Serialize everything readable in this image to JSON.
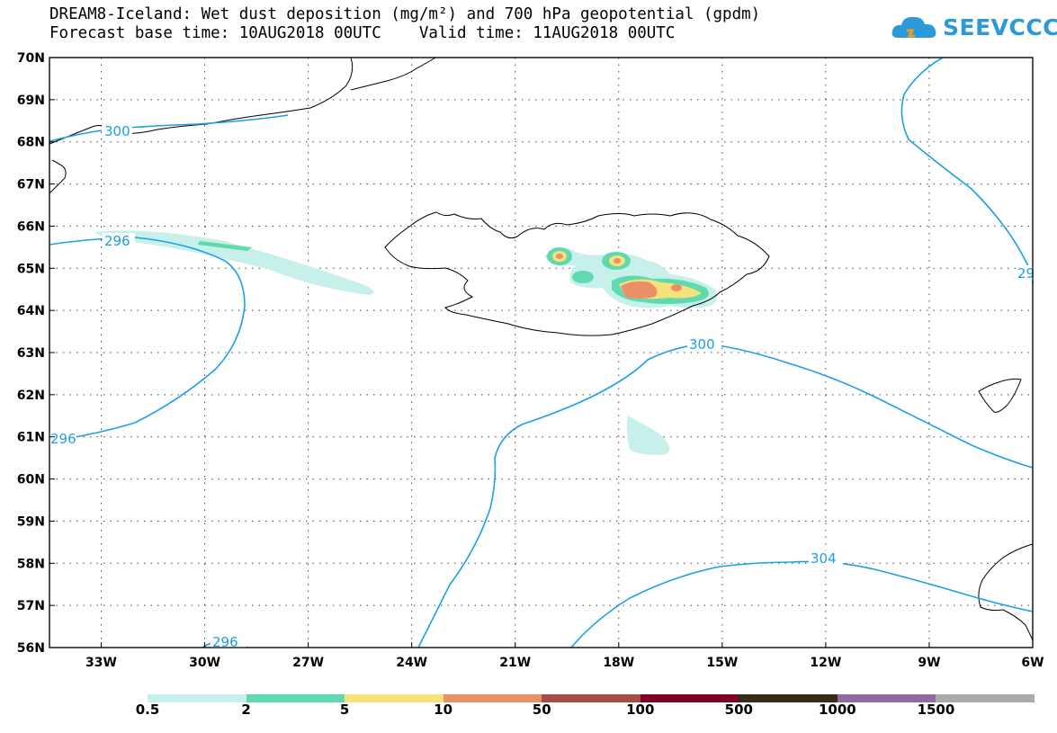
{
  "header": {
    "title_line1": "DREAM8-Iceland: Wet dust deposition (mg/m²) and 700 hPa geopotential (gpdm)",
    "title_line2": "Forecast base time: 10AUG2018 00UTC    Valid time: 11AUG2018 00UTC"
  },
  "logo": {
    "text": "SEEVCCC",
    "color": "#2a9ad8"
  },
  "map": {
    "lon_range": [
      -34.5,
      -6
    ],
    "lat_range": [
      56,
      70
    ],
    "lon_ticks": [
      "33W",
      "30W",
      "27W",
      "24W",
      "21W",
      "18W",
      "15W",
      "12W",
      "9W",
      "6W"
    ],
    "lat_ticks": [
      "70N",
      "69N",
      "68N",
      "67N",
      "66N",
      "65N",
      "64N",
      "63N",
      "62N",
      "61N",
      "60N",
      "59N",
      "58N",
      "57N",
      "56N"
    ],
    "grid": "dotted",
    "contour_color": "#1aa0e8",
    "contour_labels": [
      "300",
      "296",
      "296",
      "29",
      "300",
      "304",
      "296"
    ]
  },
  "legend": {
    "labels": [
      "0.5",
      "2",
      "5",
      "10",
      "50",
      "100",
      "500",
      "1000",
      "1500"
    ],
    "colors": [
      "#c8f0ea",
      "#5ed9b0",
      "#f5e27a",
      "#e89068",
      "#a84c48",
      "#800028",
      "#3a2a18",
      "#906aa0",
      "#aaaaaa"
    ]
  }
}
